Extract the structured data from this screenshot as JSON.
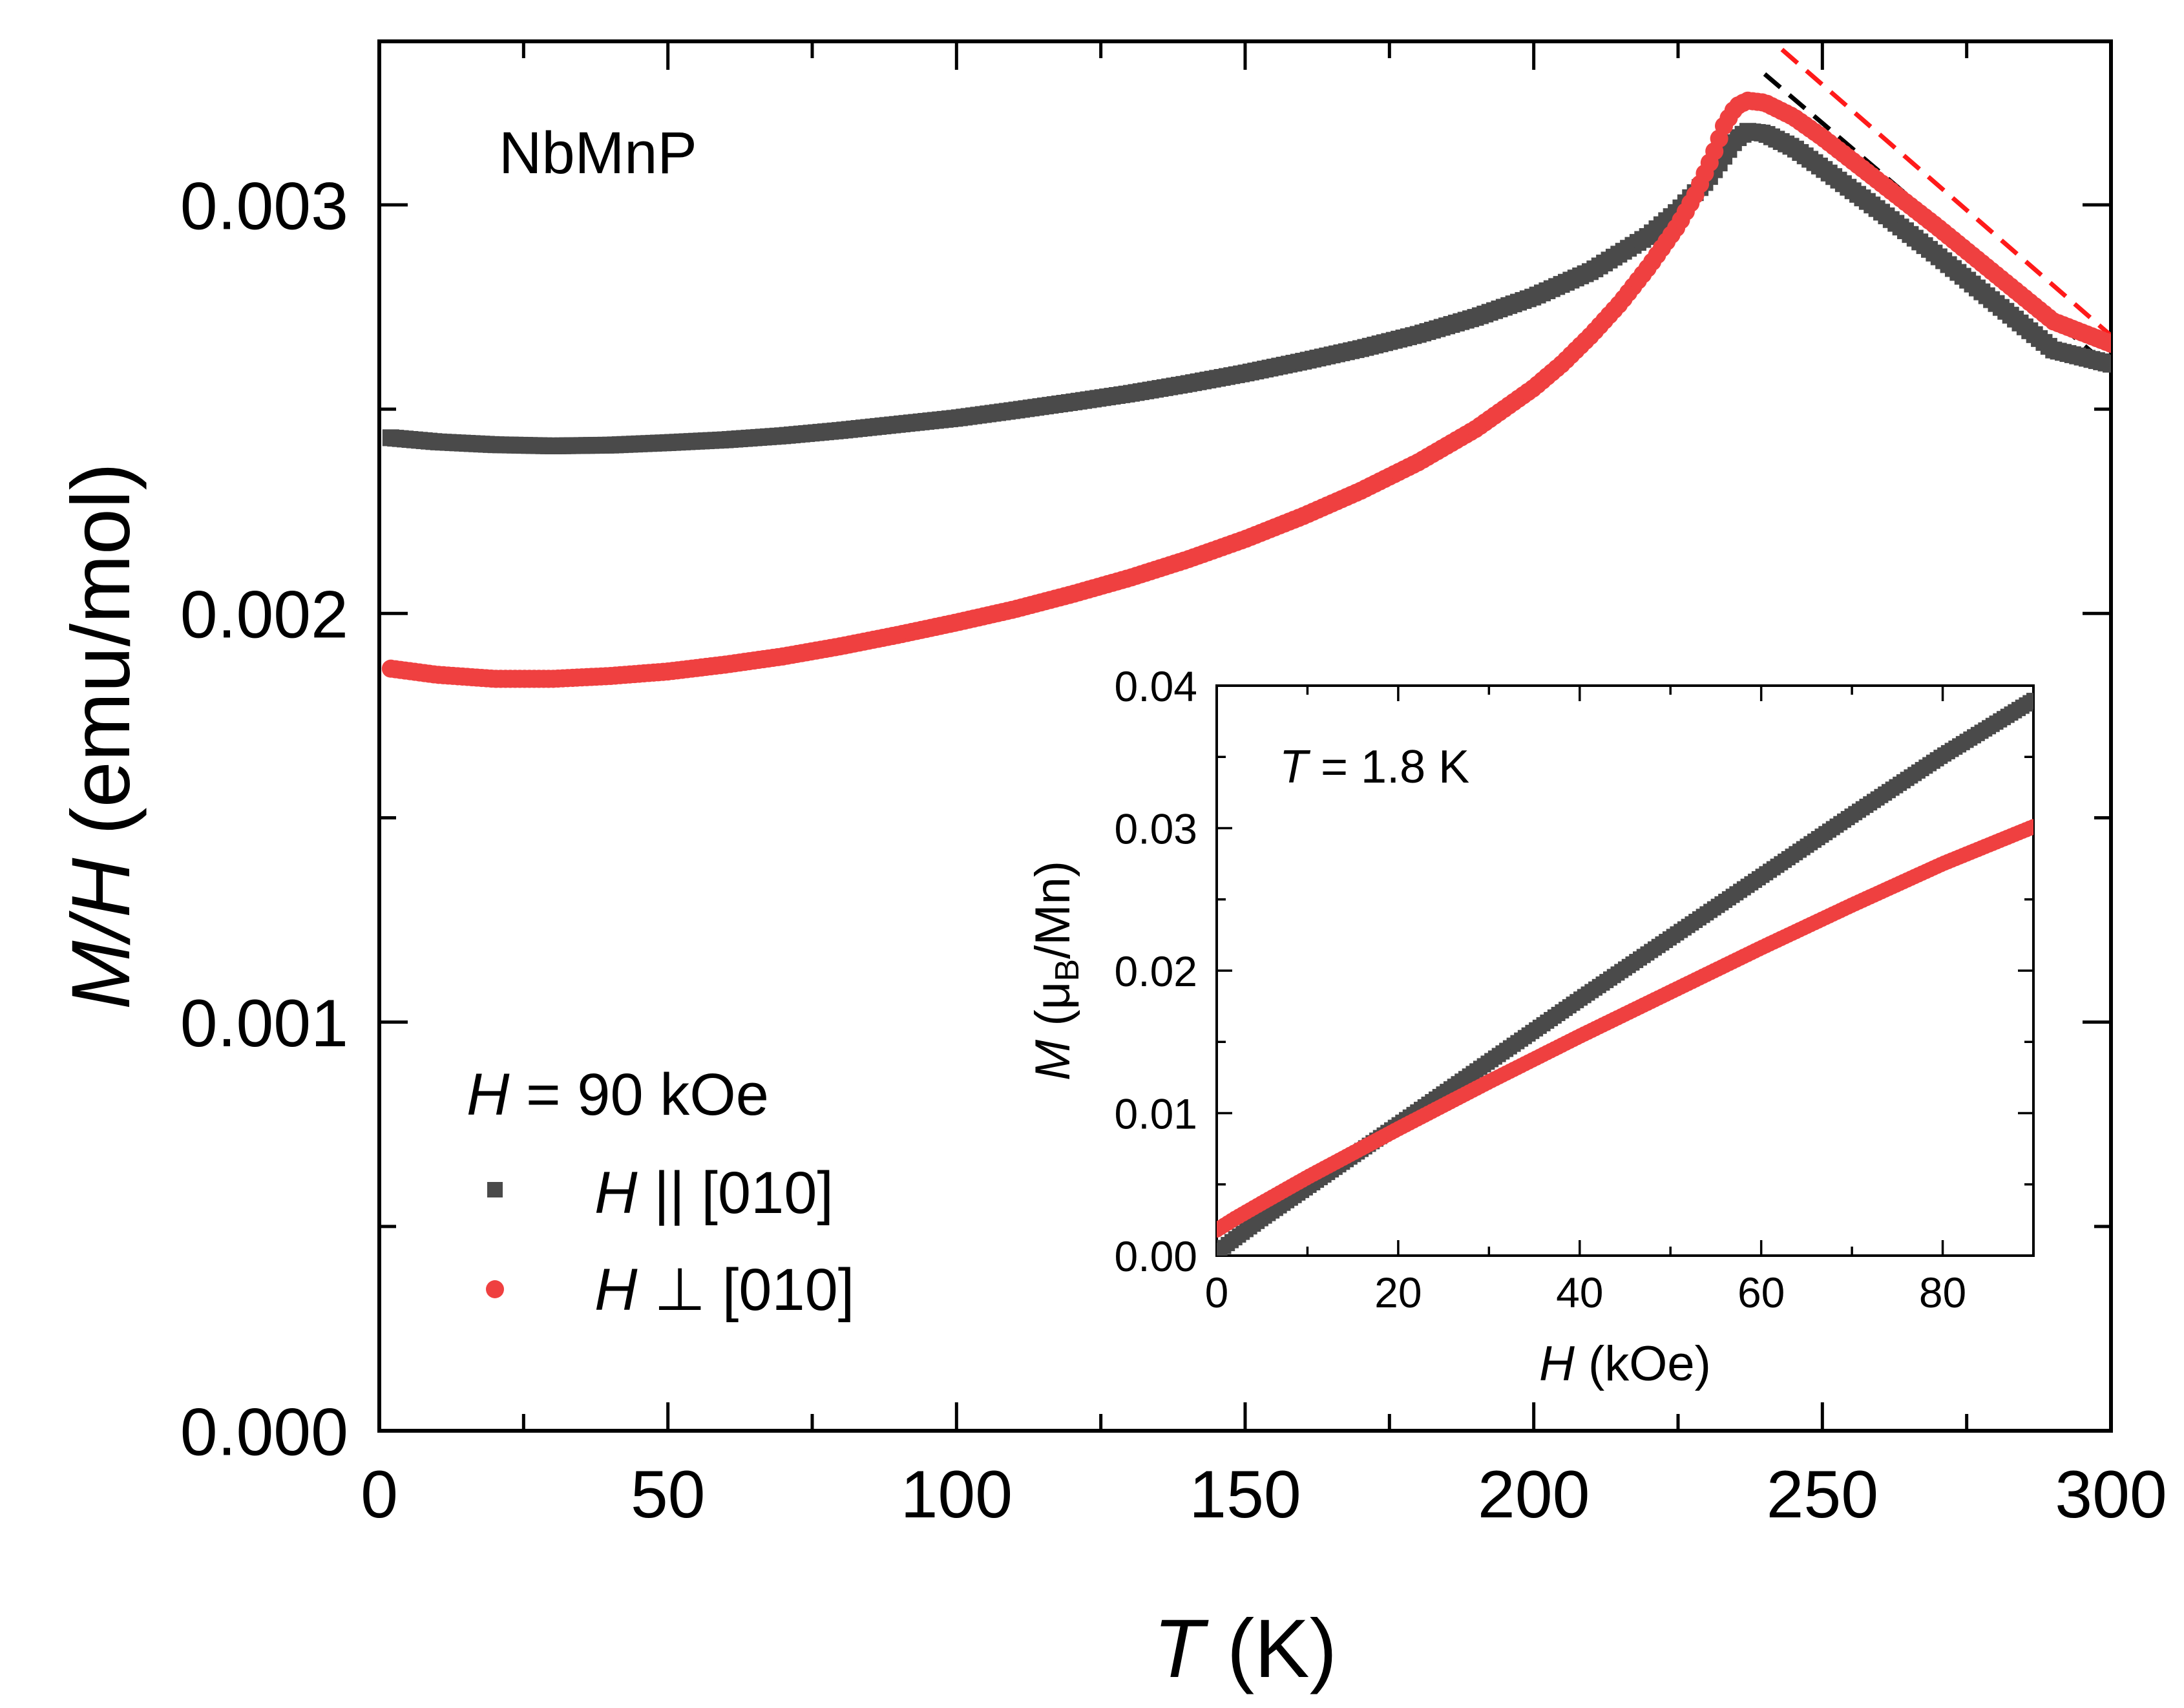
{
  "chart_data": [
    {
      "id": "main",
      "type": "scatter",
      "annotation": "NbMnP",
      "xlabel": {
        "italic": "T",
        "rest": " (K)"
      },
      "ylabel": {
        "italic": "M/H",
        "rest": " (emu/mol)"
      },
      "xlim": [
        0,
        300
      ],
      "ylim": [
        0,
        0.0034
      ],
      "xticks": [
        0,
        50,
        100,
        150,
        200,
        250,
        300
      ],
      "xtick_labels": [
        "0",
        "50",
        "100",
        "150",
        "200",
        "250",
        "300"
      ],
      "yticks": [
        0,
        0.001,
        0.002,
        0.003
      ],
      "ytick_labels": [
        "0.000",
        "0.001",
        "0.002",
        "0.003"
      ],
      "legend": {
        "title_italic": "H",
        "title_rest": " = 90 kOe",
        "entries": [
          {
            "italic": "H",
            "rest": " || [010]",
            "series": "parallel"
          },
          {
            "italic": "H",
            "rest": " ⊥ [010]",
            "series": "perp"
          }
        ]
      },
      "series": [
        {
          "id": "parallel",
          "name": "H || [010]",
          "color": "#4a4a4a",
          "marker": "square",
          "x": [
            2,
            10,
            20,
            30,
            40,
            50,
            60,
            70,
            80,
            90,
            100,
            110,
            120,
            130,
            140,
            150,
            160,
            170,
            180,
            190,
            200,
            210,
            220,
            225,
            230,
            233,
            235,
            237,
            240,
            245,
            250,
            260,
            270,
            280,
            290,
            300
          ],
          "y": [
            0.00243,
            0.00242,
            0.002413,
            0.00241,
            0.002412,
            0.002418,
            0.002425,
            0.002435,
            0.002448,
            0.002463,
            0.002478,
            0.002497,
            0.002517,
            0.002538,
            0.002562,
            0.002588,
            0.002617,
            0.002648,
            0.002683,
            0.002725,
            0.002775,
            0.002838,
            0.002925,
            0.002985,
            0.00306,
            0.00312,
            0.00316,
            0.00318,
            0.003175,
            0.00314,
            0.00309,
            0.002985,
            0.002875,
            0.00276,
            0.002645,
            0.00261
          ]
        },
        {
          "id": "perp",
          "name": "H ⊥ [010]",
          "color": "#ef4040",
          "marker": "circle",
          "x": [
            2,
            10,
            20,
            30,
            40,
            50,
            60,
            70,
            80,
            90,
            100,
            110,
            120,
            130,
            140,
            150,
            160,
            170,
            180,
            190,
            200,
            205,
            210,
            215,
            220,
            225,
            228,
            231,
            233,
            235,
            237,
            240,
            245,
            250,
            260,
            270,
            280,
            290,
            300
          ],
          "y": [
            0.001865,
            0.00185,
            0.00184,
            0.00184,
            0.001847,
            0.001858,
            0.001875,
            0.001895,
            0.00192,
            0.001948,
            0.001978,
            0.00201,
            0.002047,
            0.002087,
            0.002132,
            0.002182,
            0.002238,
            0.0023,
            0.00237,
            0.002452,
            0.002552,
            0.002612,
            0.002682,
            0.00276,
            0.00285,
            0.00295,
            0.003025,
            0.00312,
            0.003195,
            0.00324,
            0.003255,
            0.00325,
            0.003215,
            0.003165,
            0.003055,
            0.002945,
            0.00283,
            0.002715,
            0.00266
          ]
        }
      ],
      "fit_lines": [
        {
          "series": "parallel",
          "color": "#000000",
          "style": "dashed",
          "x": [
            240,
            300
          ],
          "y": [
            0.00332,
            0.0026
          ]
        },
        {
          "series": "perp",
          "color": "#ff1a1a",
          "style": "dashed",
          "x": [
            243,
            300
          ],
          "y": [
            0.00338,
            0.00268
          ]
        }
      ]
    },
    {
      "id": "inset",
      "type": "scatter",
      "annotation": {
        "italic": "T",
        "rest": " = 1.8 K"
      },
      "xlabel": {
        "italic": "H",
        "rest": " (kOe)"
      },
      "ylabel": {
        "italic": "M",
        "open": " (μ",
        "sub": "B",
        "close": "/Mn)"
      },
      "xlim": [
        0,
        90
      ],
      "ylim": [
        0,
        0.04
      ],
      "xticks": [
        0,
        20,
        40,
        60,
        80
      ],
      "xtick_labels": [
        "0",
        "20",
        "40",
        "60",
        "80"
      ],
      "yticks": [
        0,
        0.01,
        0.02,
        0.03,
        0.04
      ],
      "ytick_labels": [
        "0.00",
        "0.01",
        "0.02",
        "0.03",
        "0.04"
      ],
      "series": [
        {
          "id": "parallel",
          "name": "H || [010]",
          "color": "#4a4a4a",
          "marker": "square",
          "x": [
            0,
            2,
            5,
            10,
            20,
            30,
            40,
            50,
            60,
            70,
            80,
            90
          ],
          "y": [
            0.0002,
            0.0012,
            0.0026,
            0.0048,
            0.0092,
            0.0136,
            0.018,
            0.0223,
            0.0266,
            0.0309,
            0.0351,
            0.039
          ]
        },
        {
          "id": "perp",
          "name": "H ⊥ [010]",
          "color": "#ef4040",
          "marker": "circle",
          "x": [
            0,
            2,
            5,
            10,
            20,
            30,
            40,
            50,
            60,
            70,
            80,
            90
          ],
          "y": [
            0.0018,
            0.0026,
            0.0037,
            0.0055,
            0.0089,
            0.0122,
            0.0154,
            0.0185,
            0.0216,
            0.0246,
            0.0275,
            0.0301
          ]
        }
      ]
    }
  ]
}
